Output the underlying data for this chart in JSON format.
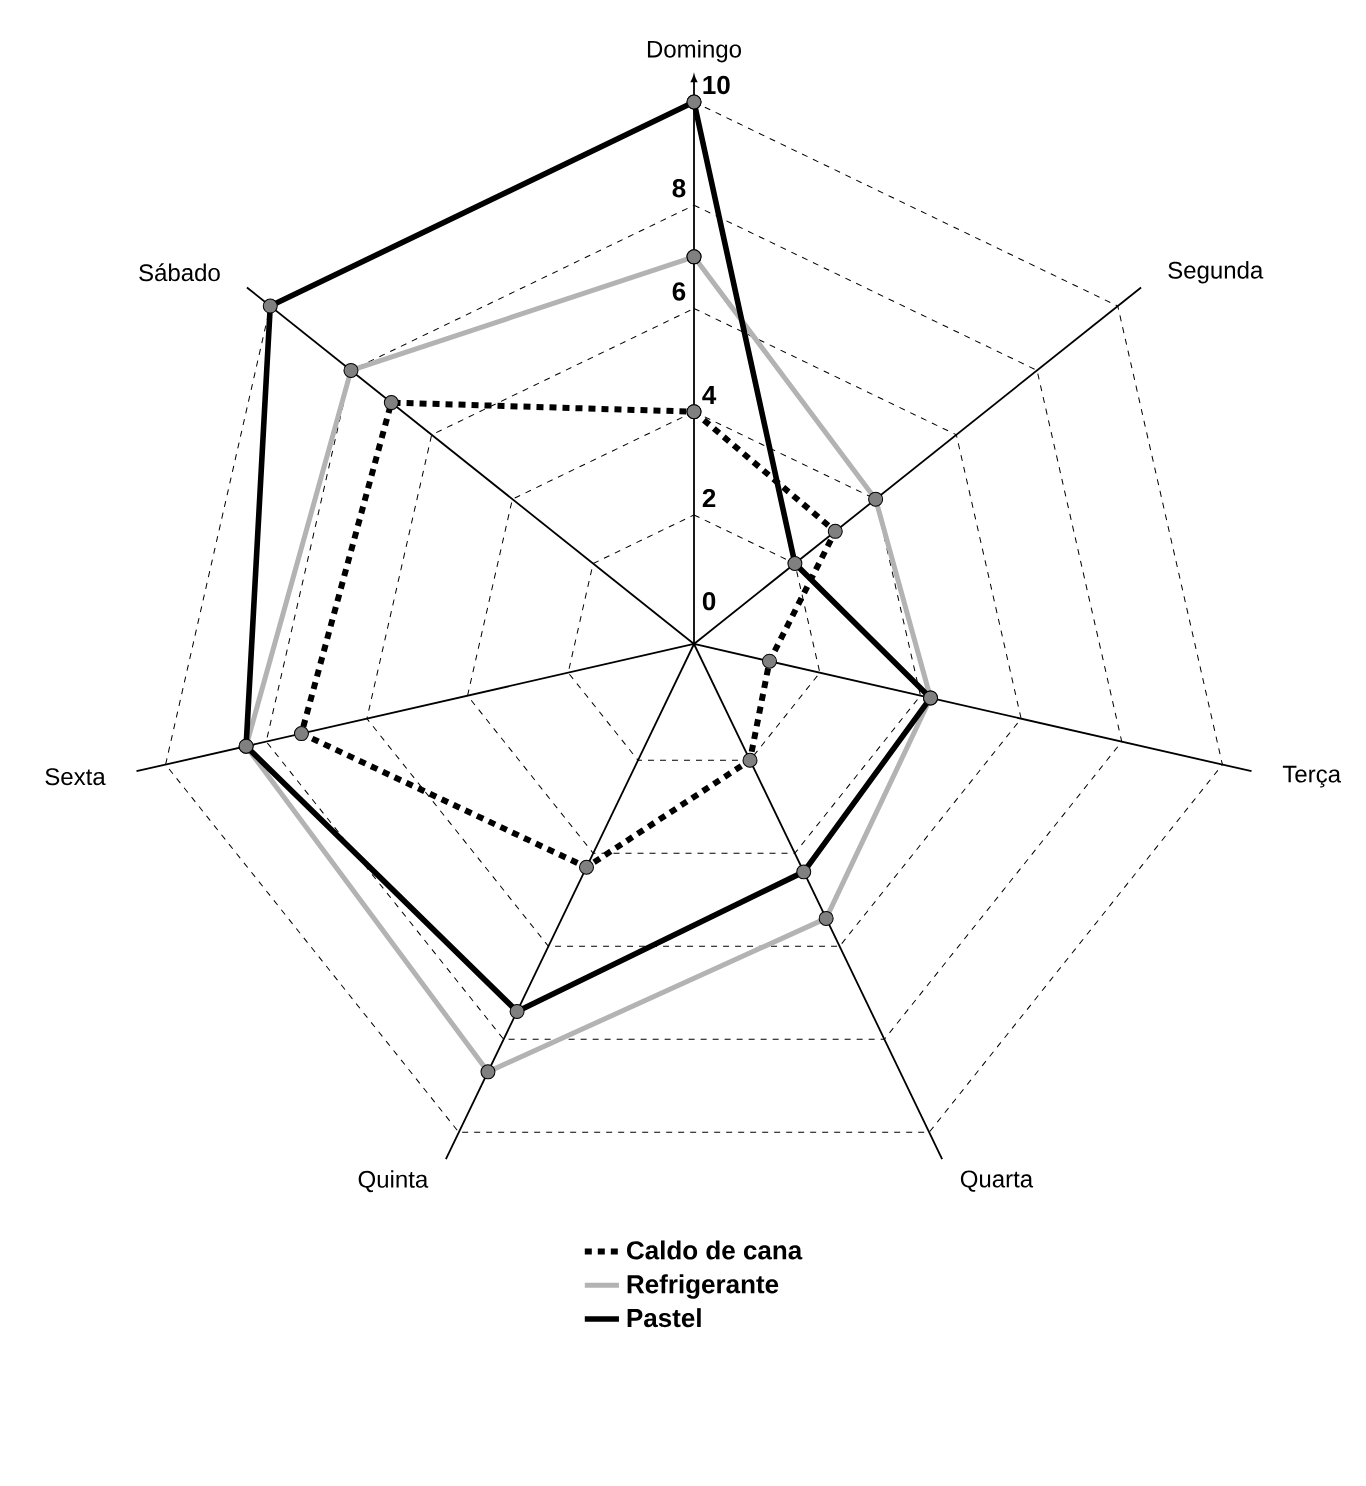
{
  "chart_data": {
    "type": "radar",
    "categories": [
      "Domingo",
      "Segunda",
      "Terça",
      "Quarta",
      "Quinta",
      "Sexta",
      "Sábado"
    ],
    "series": [
      {
        "name": "Caldo de cana",
        "color": "#000000",
        "line_style": "dotted",
        "values": [
          4,
          3,
          1,
          2,
          4.3,
          7.3,
          7
        ]
      },
      {
        "name": "Refrigerante",
        "color": "#b3b3b3",
        "line_style": "solid",
        "values": [
          7,
          4,
          4.2,
          5.4,
          8.7,
          8.4,
          8
        ]
      },
      {
        "name": "Pastel",
        "color": "#000000",
        "line_style": "solid",
        "values": [
          10,
          2,
          4.2,
          4.4,
          7.4,
          8.4,
          10
        ]
      }
    ],
    "ylim": [
      -0.5,
      10
    ],
    "yticks": [
      0,
      2,
      4,
      6,
      8,
      10
    ],
    "grid": true,
    "legend": "bottom",
    "marker": "circle"
  }
}
